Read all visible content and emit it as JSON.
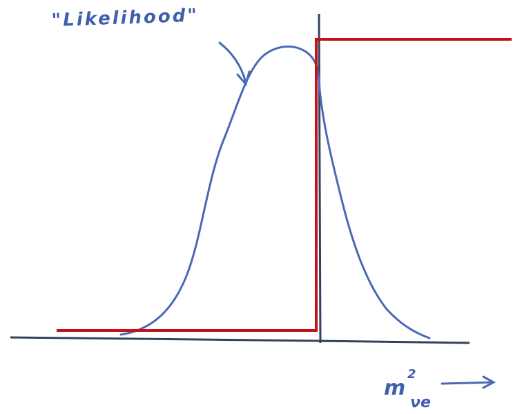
{
  "annotation": {
    "text": "\"Likelihood\""
  },
  "axis_label": {
    "base": "m",
    "superscript": "2",
    "subscript": "νe"
  }
}
